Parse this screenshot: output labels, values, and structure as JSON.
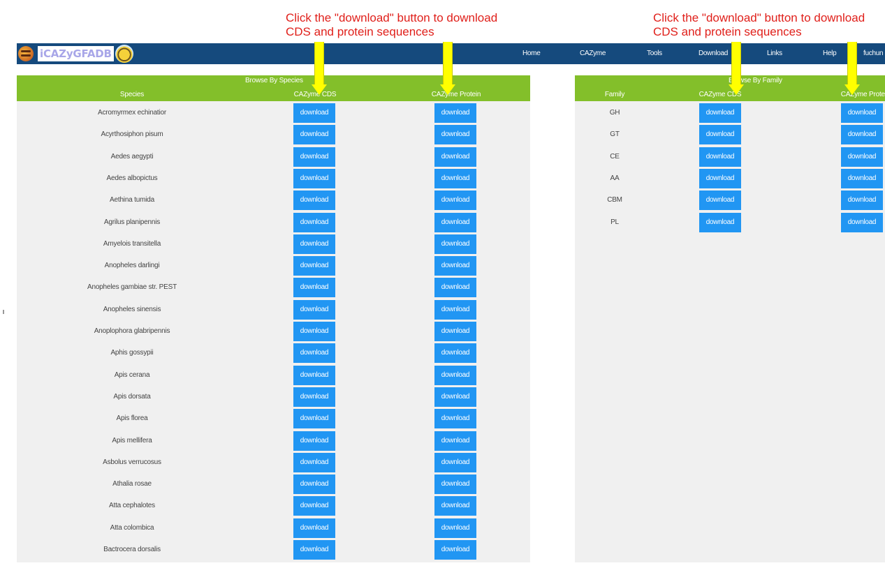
{
  "annotations": {
    "left_line1": "Click the \"download\" button to download",
    "left_line2": "CDS and protein sequences",
    "right_line1": "Click the \"download\" button to download",
    "right_line2": "CDS and protein sequences"
  },
  "logo": {
    "text": "iCAZyGFADB"
  },
  "nav": [
    "Home",
    "CAZyme",
    "Tools",
    "Download",
    "Links",
    "Help",
    "fuchun"
  ],
  "species_table": {
    "title": "Browse By Species",
    "col_species": "Species",
    "col_cds": "CAZyme CDS",
    "col_protein": "CAZyme Protein",
    "button_label": "download",
    "rows": [
      "Acromyrmex echinatior",
      "Acyrthosiphon pisum",
      "Aedes aegypti",
      "Aedes albopictus",
      "Aethina tumida",
      "Agrilus planipennis",
      "Amyelois transitella",
      "Anopheles darlingi",
      "Anopheles gambiae str. PEST",
      "Anopheles sinensis",
      "Anoplophora glabripennis",
      "Aphis gossypii",
      "Apis cerana",
      "Apis dorsata",
      "Apis florea",
      "Apis mellifera",
      "Asbolus verrucosus",
      "Athalia rosae",
      "Atta cephalotes",
      "Atta colombica",
      "Bactrocera dorsalis"
    ]
  },
  "family_table": {
    "title": "Browse By Family",
    "col_family": "Family",
    "col_cds": "CAZyme CDS",
    "col_protein": "CAZyme Protein",
    "button_label": "download",
    "rows": [
      "GH",
      "GT",
      "CE",
      "AA",
      "CBM",
      "PL"
    ]
  },
  "colors": {
    "navbar": "#154a7d",
    "table_header": "#83bf2a",
    "button": "#2196f3",
    "annotation_text": "#e0201b",
    "arrow": "#ffff00"
  }
}
